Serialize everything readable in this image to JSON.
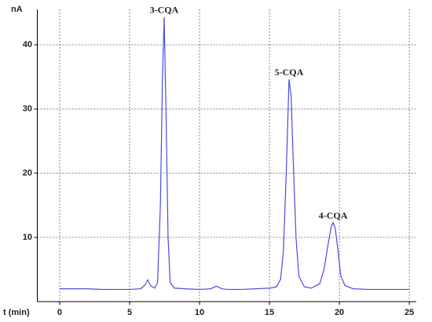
{
  "chart_data": {
    "type": "line",
    "y_label": "nA",
    "x_label": "t (min)",
    "x": [
      0,
      1,
      2,
      3,
      4,
      5,
      5.8,
      6.1,
      6.3,
      6.5,
      6.8,
      7.0,
      7.2,
      7.35,
      7.47,
      7.6,
      7.75,
      7.9,
      8.2,
      9,
      10,
      10.8,
      11.2,
      11.6,
      12,
      13,
      14,
      15,
      15.5,
      15.8,
      16.0,
      16.2,
      16.4,
      16.55,
      16.7,
      16.9,
      17.1,
      17.5,
      18,
      18.6,
      18.9,
      19.2,
      19.4,
      19.55,
      19.7,
      19.9,
      20.1,
      20.4,
      21,
      22,
      23,
      24,
      25
    ],
    "series": [
      {
        "color": "#4a4ae6",
        "values": [
          2.0,
          2.0,
          2.0,
          1.9,
          1.9,
          1.9,
          2.0,
          2.6,
          3.4,
          2.5,
          2.1,
          3.0,
          15,
          35,
          44.3,
          30,
          10,
          3,
          2.1,
          2.0,
          1.9,
          2.0,
          2.4,
          2.0,
          1.9,
          1.9,
          2.0,
          2.1,
          2.3,
          3.5,
          8,
          20,
          34.6,
          32,
          22,
          10,
          4,
          2.3,
          2.1,
          2.8,
          5,
          9,
          11.5,
          12.3,
          11.5,
          8,
          4,
          2.5,
          2.0,
          1.9,
          1.9,
          1.9,
          1.9
        ]
      }
    ],
    "annotations": [
      "3-CQA",
      "5-CQA",
      "4-CQA"
    ],
    "xlim": [
      -1.6,
      25.5
    ],
    "ylim": [
      0,
      45.5
    ],
    "xticks": [
      0,
      5,
      10,
      15,
      20,
      25
    ],
    "yticks": [
      10,
      20,
      30,
      40
    ],
    "grid": true
  }
}
